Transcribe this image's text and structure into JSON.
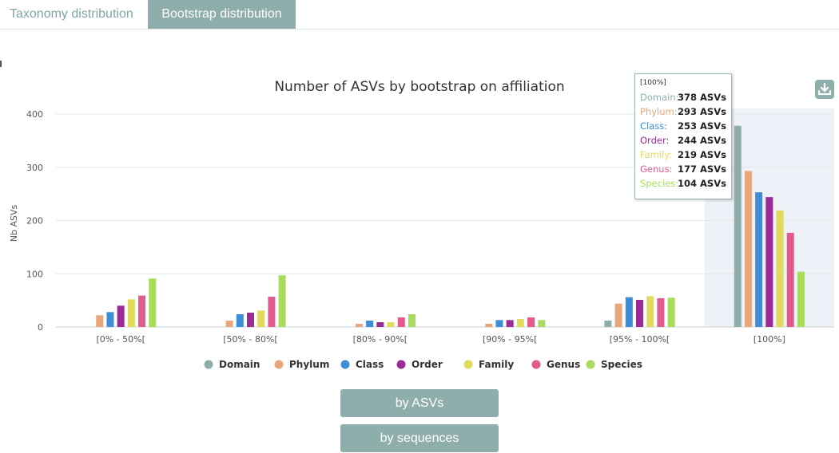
{
  "tabs": [
    {
      "label": "Taxonomy distribution",
      "active": false
    },
    {
      "label": "Bootstrap distribution",
      "active": true
    }
  ],
  "chart_data": {
    "type": "bar",
    "title": "Number of ASVs by bootstrap on affiliation",
    "ylabel": "Nb ASVs",
    "xlabel": "",
    "ylim": [
      0,
      400
    ],
    "yticks": [
      0,
      100,
      200,
      300,
      400
    ],
    "grid": true,
    "legend_position": "bottom",
    "categories": [
      "[0% - 50%[",
      "[50% - 80%[",
      "[80% - 90%[",
      "[90% - 95%[",
      "[95% - 100%[",
      "[100%]"
    ],
    "series": [
      {
        "name": "Domain",
        "color": "#8eaeab",
        "values": [
          0,
          0,
          0,
          0,
          12,
          378
        ]
      },
      {
        "name": "Phylum",
        "color": "#e8a77a",
        "values": [
          22,
          12,
          6,
          6,
          44,
          293
        ]
      },
      {
        "name": "Class",
        "color": "#3d8ed6",
        "values": [
          28,
          24,
          12,
          13,
          56,
          253
        ]
      },
      {
        "name": "Order",
        "color": "#9b2b97",
        "values": [
          40,
          27,
          9,
          13,
          51,
          244
        ]
      },
      {
        "name": "Family",
        "color": "#e2da5c",
        "values": [
          52,
          31,
          9,
          15,
          58,
          219
        ]
      },
      {
        "name": "Genus",
        "color": "#e35b8d",
        "values": [
          59,
          57,
          18,
          18,
          54,
          177
        ]
      },
      {
        "name": "Species",
        "color": "#a9dc5a",
        "values": [
          91,
          97,
          24,
          13,
          55,
          104
        ]
      }
    ],
    "highlighted_category": "[100%]"
  },
  "tooltip": {
    "header": "[100%]",
    "rows": [
      {
        "label": "Domain:",
        "value": "378 ASVs",
        "color": "#8eaeab"
      },
      {
        "label": "Phylum:",
        "value": "293 ASVs",
        "color": "#e8a77a"
      },
      {
        "label": "Class:",
        "value": "253 ASVs",
        "color": "#3d8ed6"
      },
      {
        "label": "Order:",
        "value": "244 ASVs",
        "color": "#9b2b97"
      },
      {
        "label": "Family:",
        "value": "219 ASVs",
        "color": "#e2da5c"
      },
      {
        "label": "Genus:",
        "value": "177 ASVs",
        "color": "#e35b8d"
      },
      {
        "label": "Species:",
        "value": "104 ASVs",
        "color": "#a9dc5a"
      }
    ]
  },
  "download_icon": "download-icon",
  "buttons": {
    "by_asvs": "by ASVs",
    "by_sequences": "by sequences"
  }
}
